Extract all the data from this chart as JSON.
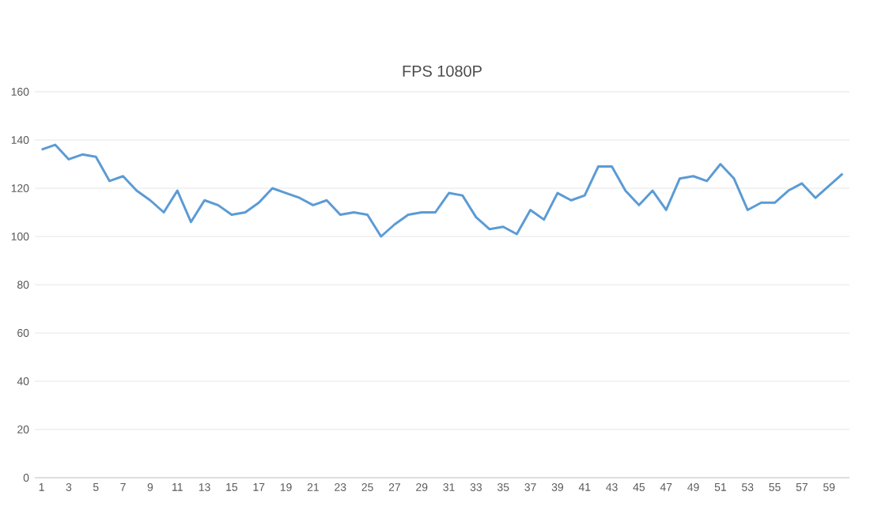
{
  "chart_data": {
    "type": "line",
    "title": "FPS 1080P",
    "categories": [
      "1",
      null,
      "3",
      null,
      "5",
      null,
      "7",
      null,
      "9",
      null,
      "11",
      null,
      "13",
      null,
      "15",
      null,
      "17",
      null,
      "19",
      null,
      "21",
      null,
      "23",
      null,
      "25",
      null,
      "27",
      null,
      "29",
      null,
      "31",
      null,
      "33",
      null,
      "35",
      null,
      "37",
      null,
      "39",
      null,
      "41",
      null,
      "43",
      null,
      "45",
      null,
      "47",
      null,
      "49",
      null,
      "51",
      null,
      "53",
      null,
      "55",
      null,
      "57",
      null,
      "59",
      null
    ],
    "values": [
      136,
      138,
      132,
      134,
      133,
      123,
      125,
      119,
      115,
      110,
      119,
      106,
      115,
      113,
      109,
      110,
      114,
      120,
      118,
      116,
      113,
      115,
      109,
      110,
      109,
      100,
      105,
      109,
      110,
      110,
      118,
      117,
      108,
      103,
      104,
      101,
      111,
      107,
      118,
      115,
      117,
      129,
      129,
      119,
      113,
      119,
      111,
      124,
      125,
      123,
      130,
      124,
      111,
      114,
      114,
      119,
      122,
      116,
      121,
      126
    ],
    "color": "#5b9bd5",
    "ylim": [
      0,
      160
    ],
    "yticks": [
      0,
      20,
      40,
      60,
      80,
      100,
      120,
      140,
      160
    ],
    "grid": "y",
    "marker": "none",
    "line_style": "solid"
  }
}
